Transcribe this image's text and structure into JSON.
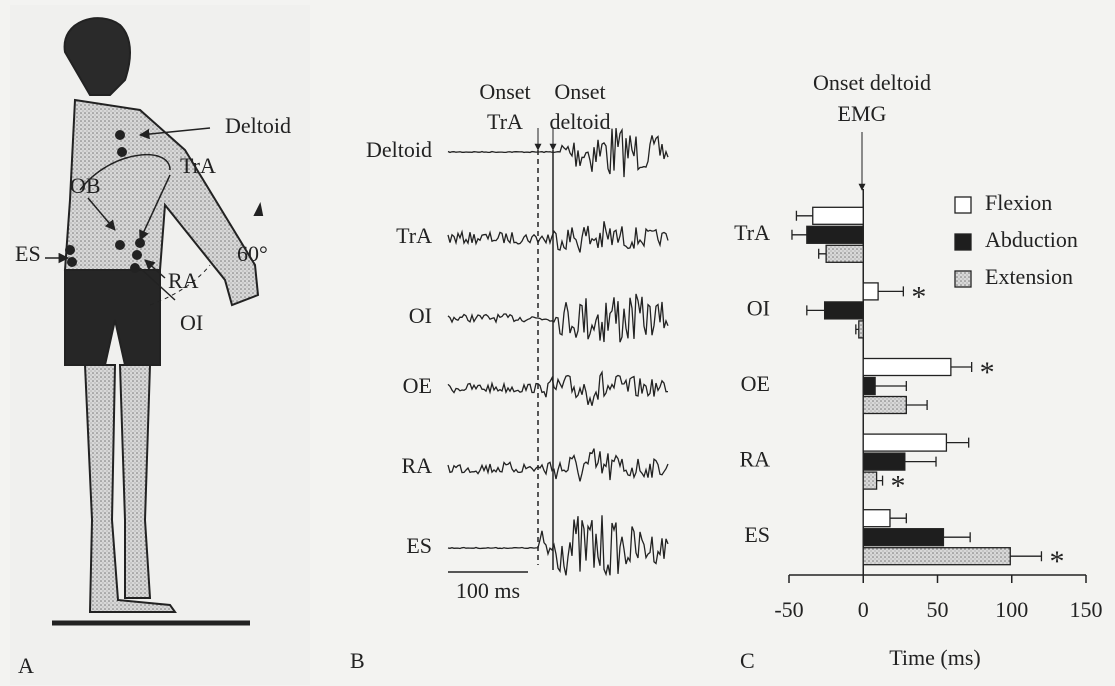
{
  "panel_a": {
    "letter": "A",
    "labels": {
      "deltoid": "Deltoid",
      "tra": "TrA",
      "ob": "OB",
      "es": "ES",
      "ra": "RA",
      "oi": "OI",
      "angle": "60°"
    }
  },
  "panel_b": {
    "letter": "B",
    "onset_tra": [
      "Onset",
      "TrA"
    ],
    "onset_deltoid": [
      "Onset",
      "deltoid"
    ],
    "traces": [
      "Deltoid",
      "TrA",
      "OI",
      "OE",
      "RA",
      "ES"
    ],
    "scale_bar": "100 ms"
  },
  "chart_data": {
    "type": "barh",
    "letter": "C",
    "annotation": [
      "Onset deltoid",
      "EMG"
    ],
    "xlabel": "Time (ms)",
    "categories": [
      "TrA",
      "OI",
      "OE",
      "RA",
      "ES"
    ],
    "series": [
      {
        "name": "Flexion",
        "color": "#ffffff",
        "values": [
          -34,
          10,
          59,
          56,
          18
        ],
        "errors": [
          11,
          17,
          14,
          15,
          11
        ],
        "flags": [
          null,
          "*",
          "*",
          null,
          null
        ]
      },
      {
        "name": "Abduction",
        "color": "#1e1e1e",
        "values": [
          -38,
          -26,
          8,
          28,
          54
        ],
        "errors": [
          10,
          12,
          21,
          21,
          18
        ],
        "flags": [
          null,
          null,
          null,
          null,
          null
        ]
      },
      {
        "name": "Extension",
        "color": "#bdbdbd",
        "values": [
          -25,
          -3,
          29,
          9,
          99
        ],
        "errors": [
          5,
          2,
          14,
          4,
          21
        ],
        "flags": [
          null,
          null,
          null,
          "*",
          "*"
        ]
      }
    ],
    "xlim": [
      -50,
      150
    ],
    "xticks": [
      -50,
      0,
      50,
      100,
      150
    ],
    "legend": "upper right"
  }
}
